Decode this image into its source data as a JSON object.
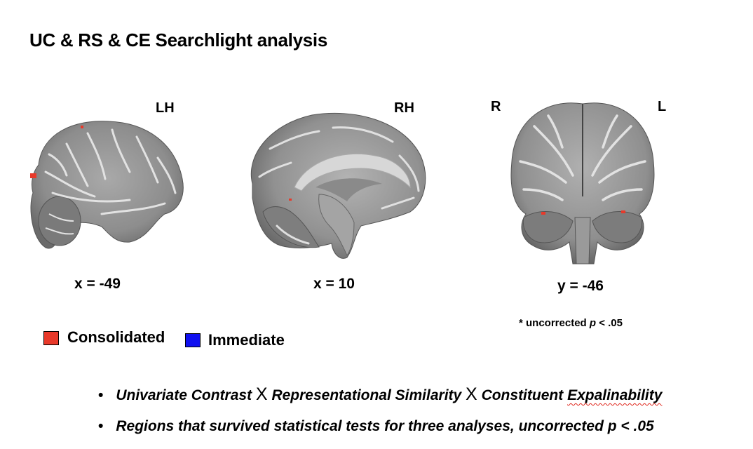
{
  "title": "UC & RS & CE Searchlight analysis",
  "panels": {
    "sagittal_left": {
      "hemisphere": "LH",
      "coord": "x = -49"
    },
    "sagittal_right": {
      "hemisphere": "RH",
      "coord": "x = 10"
    },
    "coronal": {
      "left_label": "R",
      "right_label": "L",
      "coord": "y = -46"
    }
  },
  "threshold_note": {
    "prefix": "* uncorrected ",
    "p": "p",
    "suffix": " < .05"
  },
  "legend": [
    {
      "label": "Consolidated",
      "color": "#e8392a"
    },
    {
      "label": "Immediate",
      "color": "#1010f0"
    }
  ],
  "bullets": {
    "b1": {
      "part1": "Univariate Contrast ",
      "sym1": "X",
      "part2": " Representational Similarity ",
      "sym2": "X",
      "part3": " Constituent ",
      "misspelled": "Expalinability"
    },
    "b2": "Regions that survived statistical tests for three analyses, uncorrected p < .05"
  },
  "bullet_glyph": "•"
}
